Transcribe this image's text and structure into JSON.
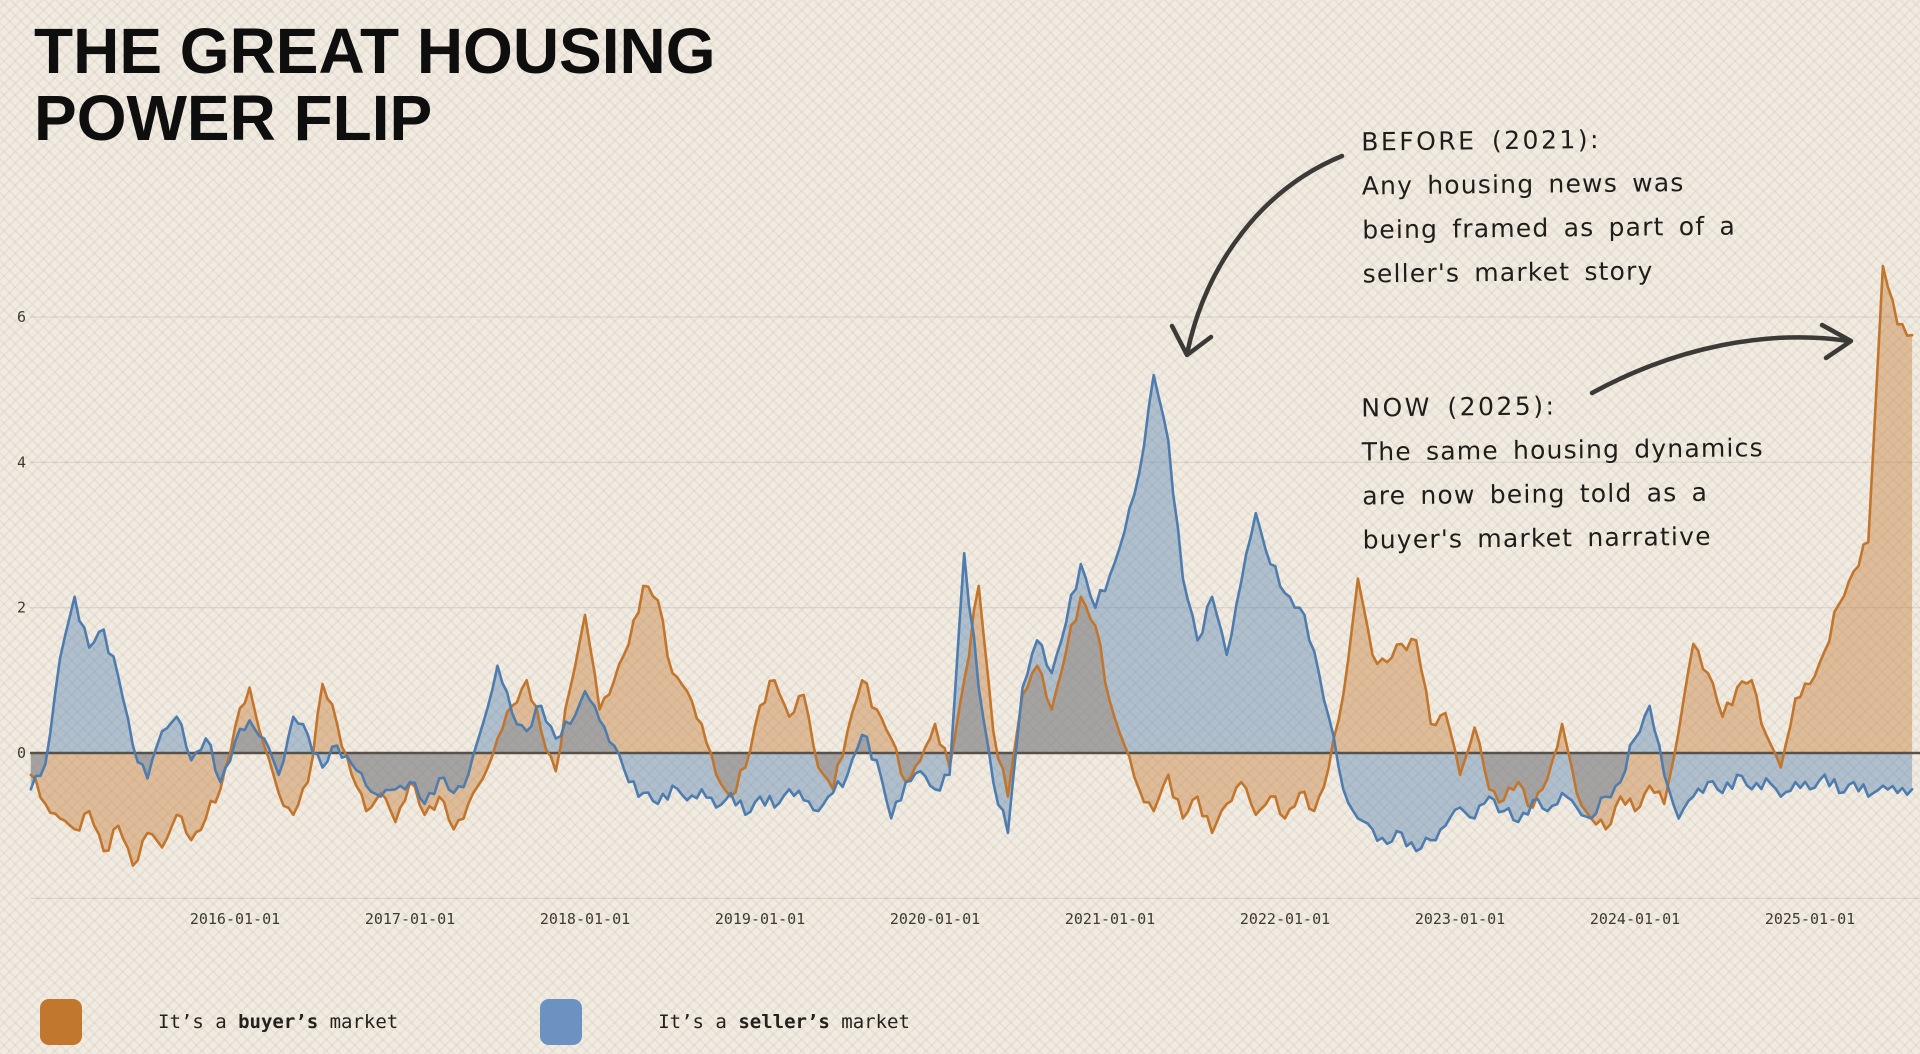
{
  "title": {
    "line1": "THE GREAT HOUSING",
    "line2": "POWER FLIP"
  },
  "annotations": {
    "before": {
      "heading": "BEFORE (2021):",
      "lines": [
        "Any housing news was",
        "being framed as part of a",
        "seller's market story"
      ]
    },
    "now": {
      "heading": "NOW (2025):",
      "lines": [
        "The same housing dynamics",
        "are now being told as a",
        "buyer's market narrative"
      ]
    }
  },
  "legend": {
    "buyer": {
      "prefix": "It’s a ",
      "bold": "buyer’s",
      "suffix": " market",
      "color": "#C2772F"
    },
    "seller": {
      "prefix": "It’s a ",
      "bold": "seller’s",
      "suffix": " market",
      "color": "#6B92C1"
    }
  },
  "chart_data": {
    "type": "area",
    "title": "The Great Housing Power Flip",
    "x_tick_labels": [
      "2016-01-01",
      "2017-01-01",
      "2018-01-01",
      "2019-01-01",
      "2020-01-01",
      "2021-01-01",
      "2022-01-01",
      "2023-01-01",
      "2024-01-01",
      "2025-01-01"
    ],
    "y_ticks": [
      0,
      2,
      4,
      6
    ],
    "y_gridlines": [
      -2,
      2,
      4,
      6
    ],
    "ylim": [
      -2.05,
      7.2
    ],
    "xlim_years": [
      2014.75,
      2025.62
    ],
    "x_start": 2014.8333,
    "x_step_years": 0.083333,
    "zero_line": true,
    "grid": true,
    "legend_position": "bottom-left",
    "series": [
      {
        "name": "It's a buyer's market",
        "color": "#C2752C",
        "fill_opacity": 0.4,
        "values": [
          -0.3,
          -0.7,
          -0.9,
          -1.05,
          -0.8,
          -1.35,
          -1.0,
          -1.55,
          -1.1,
          -1.3,
          -0.85,
          -1.2,
          -0.9,
          -0.5,
          0.35,
          0.9,
          0.1,
          -0.55,
          -0.85,
          -0.4,
          0.95,
          0.4,
          -0.3,
          -0.8,
          -0.55,
          -0.95,
          -0.4,
          -0.85,
          -0.6,
          -1.05,
          -0.7,
          -0.35,
          0.2,
          0.65,
          1.0,
          0.3,
          -0.25,
          0.9,
          1.9,
          0.6,
          1.0,
          1.5,
          2.3,
          2.1,
          1.1,
          0.85,
          0.4,
          -0.3,
          -0.6,
          -0.2,
          0.65,
          1.0,
          0.5,
          0.8,
          -0.2,
          -0.5,
          0.3,
          1.0,
          0.6,
          0.2,
          -0.4,
          -0.1,
          0.4,
          -0.2,
          1.0,
          2.3,
          0.3,
          -0.6,
          0.8,
          1.2,
          0.6,
          1.4,
          2.15,
          1.75,
          0.7,
          0.1,
          -0.5,
          -0.8,
          -0.3,
          -0.9,
          -0.6,
          -1.1,
          -0.7,
          -0.4,
          -0.85,
          -0.6,
          -0.9,
          -0.55,
          -0.8,
          -0.2,
          0.8,
          2.4,
          1.35,
          1.25,
          1.5,
          1.55,
          0.4,
          0.55,
          -0.3,
          0.35,
          -0.5,
          -0.65,
          -0.4,
          -0.75,
          -0.35,
          0.4,
          -0.55,
          -0.9,
          -1.05,
          -0.6,
          -0.8,
          -0.45,
          -0.7,
          0.3,
          1.5,
          1.1,
          0.5,
          0.9,
          1.0,
          0.25,
          -0.2,
          0.75,
          0.95,
          1.4,
          2.05,
          2.5,
          2.9,
          6.7,
          5.9,
          5.75
        ]
      },
      {
        "name": "It's a seller's market",
        "color": "#4E7CAE",
        "fill_opacity": 0.4,
        "values": [
          -0.5,
          -0.15,
          1.3,
          2.15,
          1.45,
          1.7,
          1.05,
          0.1,
          -0.35,
          0.3,
          0.5,
          -0.1,
          0.2,
          -0.4,
          0.15,
          0.45,
          0.2,
          -0.3,
          0.5,
          0.25,
          -0.2,
          0.1,
          -0.15,
          -0.45,
          -0.6,
          -0.5,
          -0.4,
          -0.7,
          -0.35,
          -0.55,
          -0.3,
          0.4,
          1.2,
          0.55,
          0.3,
          0.65,
          0.2,
          0.4,
          0.85,
          0.45,
          0.1,
          -0.4,
          -0.55,
          -0.7,
          -0.45,
          -0.65,
          -0.5,
          -0.75,
          -0.55,
          -0.85,
          -0.6,
          -0.75,
          -0.5,
          -0.65,
          -0.8,
          -0.55,
          -0.3,
          0.25,
          -0.1,
          -0.9,
          -0.4,
          -0.25,
          -0.5,
          -0.3,
          2.75,
          0.9,
          -0.4,
          -1.1,
          0.9,
          1.55,
          1.1,
          1.8,
          2.6,
          2.0,
          2.45,
          3.05,
          3.85,
          5.2,
          4.3,
          2.4,
          1.55,
          2.15,
          1.35,
          2.35,
          3.3,
          2.6,
          2.2,
          2.0,
          1.4,
          0.5,
          -0.5,
          -0.9,
          -1.05,
          -1.25,
          -1.1,
          -1.35,
          -1.2,
          -1.0,
          -0.75,
          -0.9,
          -0.6,
          -0.8,
          -0.95,
          -0.65,
          -0.8,
          -0.55,
          -0.75,
          -0.9,
          -0.6,
          -0.4,
          0.2,
          0.65,
          -0.3,
          -0.9,
          -0.6,
          -0.4,
          -0.55,
          -0.3,
          -0.5,
          -0.35,
          -0.6,
          -0.4,
          -0.5,
          -0.3,
          -0.55,
          -0.4,
          -0.6,
          -0.45,
          -0.55,
          -0.5
        ]
      }
    ]
  }
}
